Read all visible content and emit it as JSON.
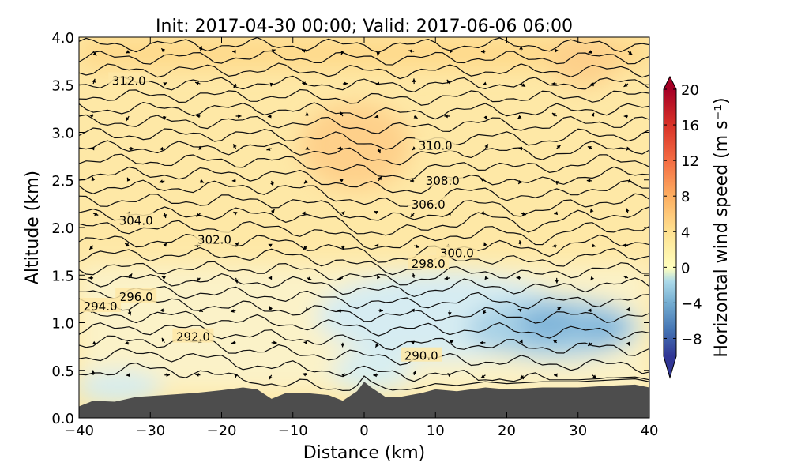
{
  "chart_data": {
    "type": "contour",
    "title": "Init: 2017-04-30 00:00; Valid: 2017-06-06 06:00",
    "xlabel": "Distance (km)",
    "ylabel": "Altitude (km)",
    "xlim": [
      -40,
      40
    ],
    "ylim": [
      0.0,
      4.0
    ],
    "xticks": [
      -40,
      -30,
      -20,
      -10,
      0,
      10,
      20,
      30,
      40
    ],
    "xtick_labels": [
      "−40",
      "−30",
      "−20",
      "−10",
      "0",
      "10",
      "20",
      "30",
      "40"
    ],
    "yticks": [
      0.0,
      0.5,
      1.0,
      1.5,
      2.0,
      2.5,
      3.0,
      3.5,
      4.0
    ],
    "ytick_labels": [
      "0.0",
      "0.5",
      "1.0",
      "1.5",
      "2.0",
      "2.5",
      "3.0",
      "3.5",
      "4.0"
    ],
    "colorbar": {
      "label": "Horizontal wind speed (m s⁻¹)",
      "range": [
        -10,
        20
      ],
      "ticks": [
        20,
        16,
        12,
        8,
        4,
        0,
        -4,
        -8
      ],
      "tick_labels": [
        "20",
        "16",
        "12",
        "8",
        "4",
        "0",
        "−4",
        "−8"
      ],
      "colors": [
        "#313695",
        "#4575b4",
        "#74add1",
        "#abd9e9",
        "#e0f3f8",
        "#ffffbf",
        "#fee090",
        "#fdae61",
        "#f46d43",
        "#d73027",
        "#a50026"
      ]
    },
    "terrain": {
      "color": "#4d4d4d",
      "x": [
        -40,
        -38,
        -35,
        -32,
        -28,
        -24,
        -20,
        -17,
        -15,
        -13,
        -11,
        -8,
        -5,
        -3,
        -1,
        0,
        1,
        3,
        5,
        8,
        10,
        13,
        17,
        20,
        25,
        30,
        35,
        38,
        40
      ],
      "y": [
        0.12,
        0.18,
        0.17,
        0.22,
        0.24,
        0.26,
        0.29,
        0.32,
        0.3,
        0.2,
        0.26,
        0.26,
        0.24,
        0.18,
        0.28,
        0.38,
        0.32,
        0.22,
        0.22,
        0.26,
        0.3,
        0.28,
        0.32,
        0.3,
        0.32,
        0.32,
        0.34,
        0.35,
        0.32
      ]
    },
    "theta_levels": [
      288,
      289,
      290,
      291,
      292,
      293,
      294,
      295,
      296,
      297,
      298,
      299,
      300,
      301,
      302,
      303,
      304,
      305,
      306,
      307,
      308,
      309,
      310,
      311,
      312,
      313
    ],
    "contour_labels": [
      {
        "text": "312.0",
        "x": -33,
        "y": 3.54
      },
      {
        "text": "310.0",
        "x": 10,
        "y": 2.86
      },
      {
        "text": "308.0",
        "x": 11,
        "y": 2.49
      },
      {
        "text": "306.0",
        "x": 9,
        "y": 2.24
      },
      {
        "text": "304.0",
        "x": -32,
        "y": 2.07
      },
      {
        "text": "302.0",
        "x": -21,
        "y": 1.87
      },
      {
        "text": "300.0",
        "x": 13,
        "y": 1.73
      },
      {
        "text": "298.0",
        "x": 9,
        "y": 1.62
      },
      {
        "text": "296.0",
        "x": -32,
        "y": 1.27
      },
      {
        "text": "294.0",
        "x": -37,
        "y": 1.17
      },
      {
        "text": "292.0",
        "x": -24,
        "y": 0.85
      },
      {
        "text": "290.0",
        "x": 8,
        "y": 0.65
      }
    ]
  }
}
